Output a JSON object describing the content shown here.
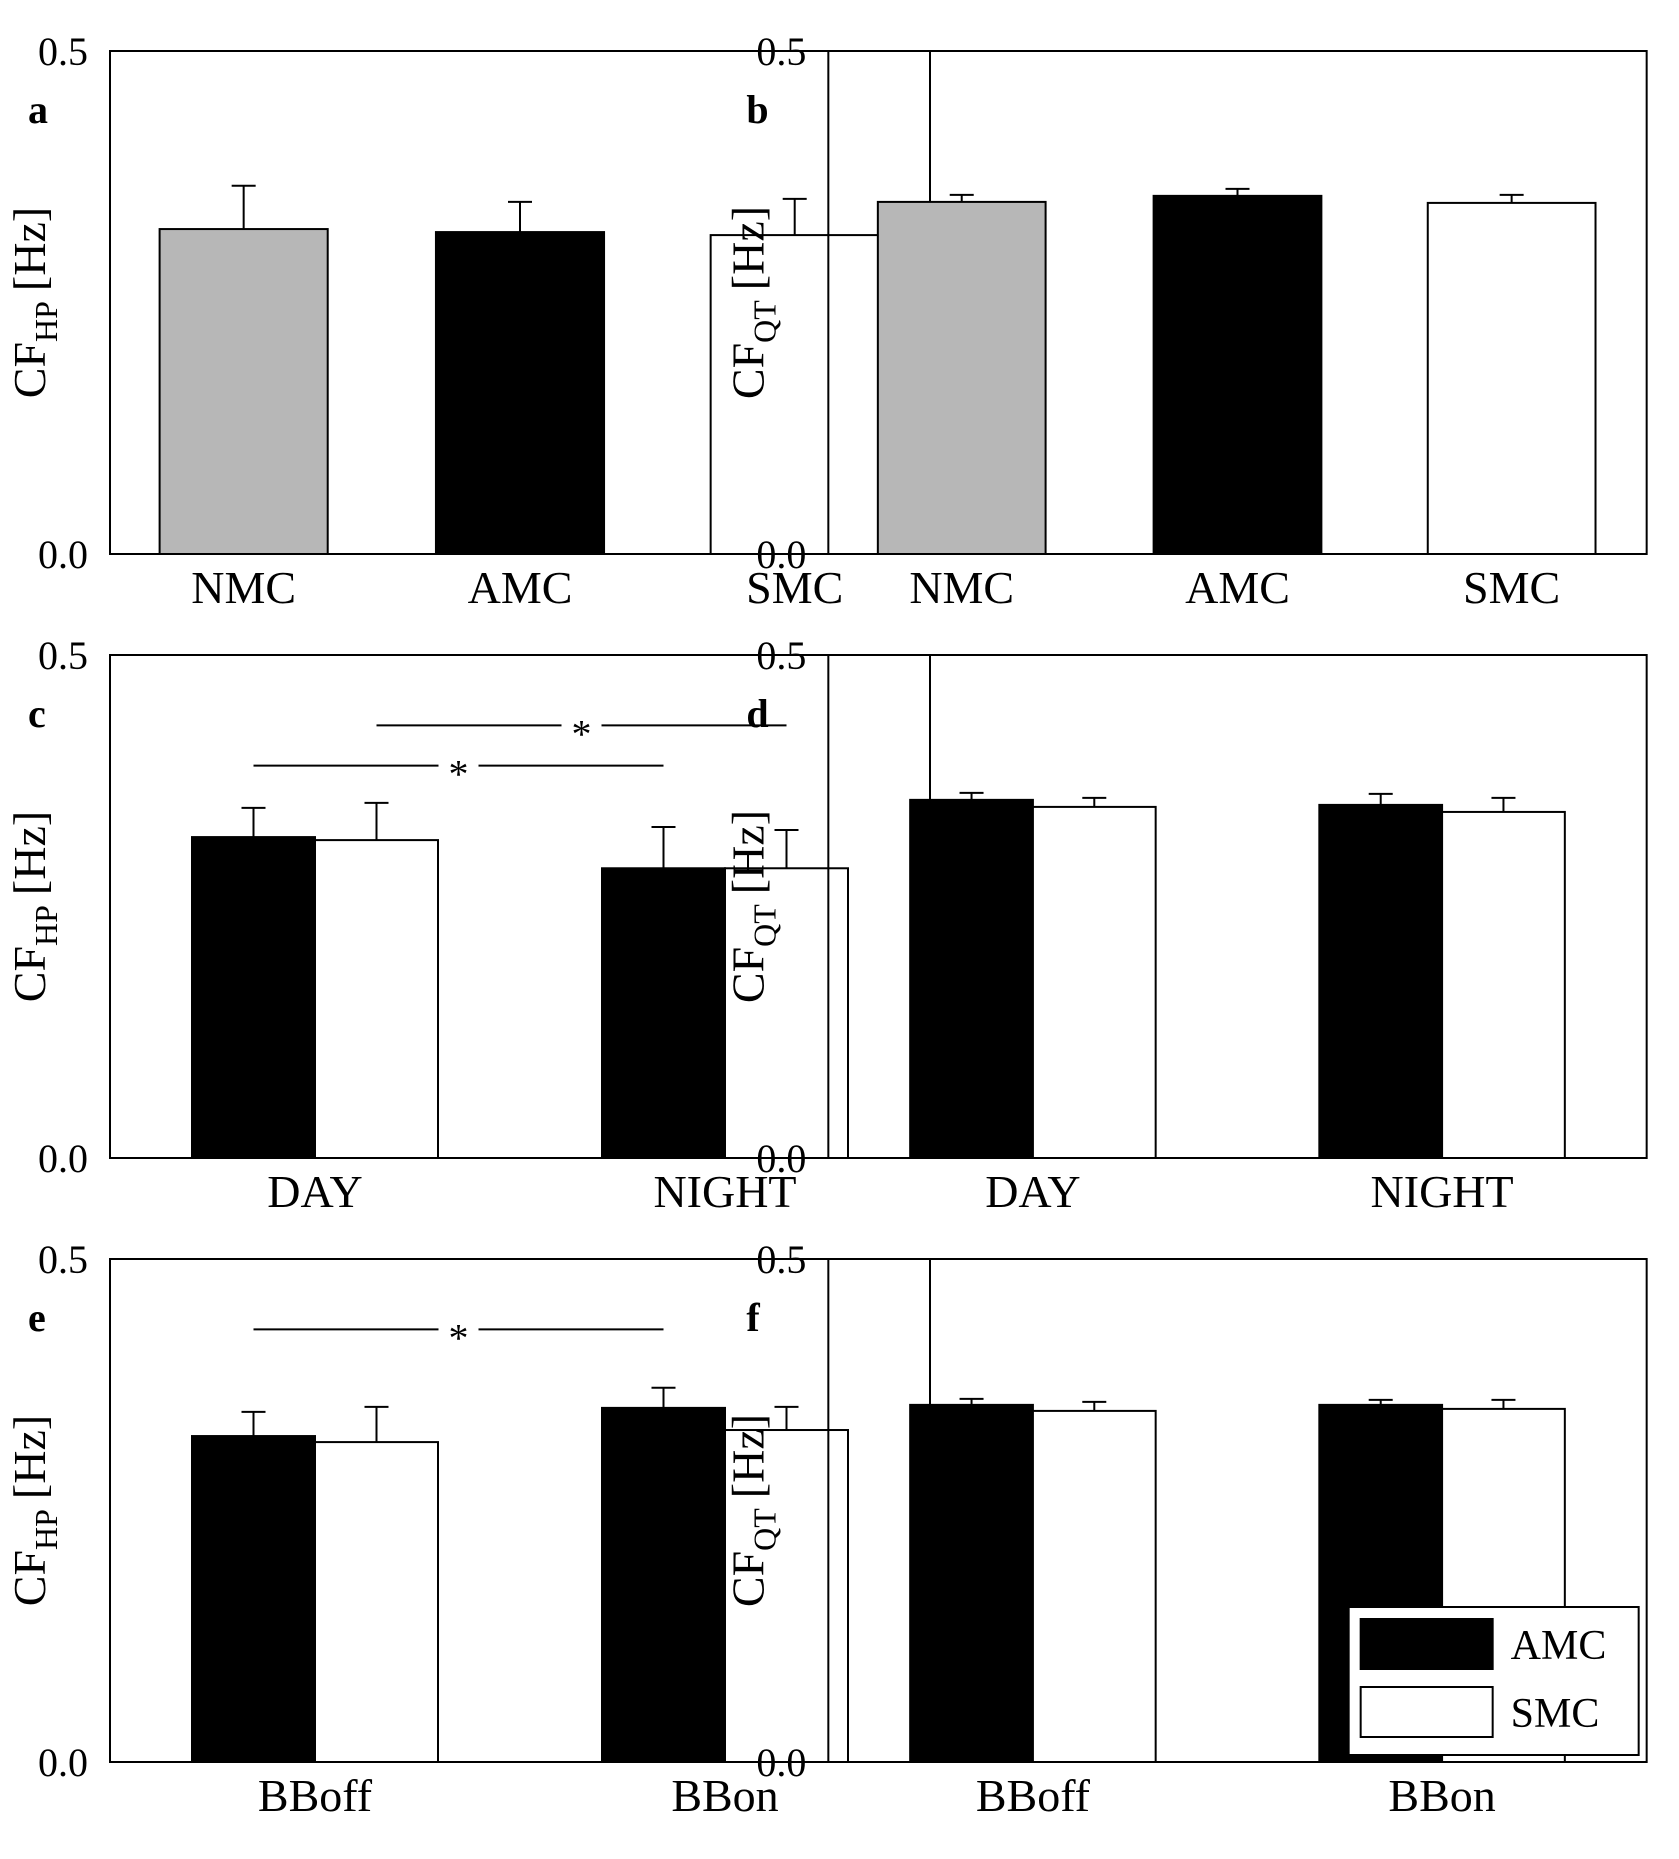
{
  "chart_data": [
    {
      "type": "bar",
      "panel": "a",
      "ylabel": {
        "main": "CF",
        "sub": "HP",
        "unit": "[Hz]"
      },
      "ylim": [
        0,
        0.5
      ],
      "yticks": [
        "0.0",
        "0.5"
      ],
      "categories": [
        "NMC",
        "AMC",
        "SMC"
      ],
      "series": [
        {
          "name": "value",
          "values": [
            0.323,
            0.32,
            0.317
          ],
          "errors": [
            0.043,
            0.03,
            0.036
          ],
          "colors": [
            "#b7b7b7",
            "#000000",
            "#ffffff"
          ]
        }
      ],
      "significance": []
    },
    {
      "type": "bar",
      "panel": "b",
      "ylabel": {
        "main": "CF",
        "sub": "QT",
        "unit": "[Hz]"
      },
      "ylim": [
        0,
        0.5
      ],
      "yticks": [
        "0.0",
        "0.5"
      ],
      "categories": [
        "NMC",
        "AMC",
        "SMC"
      ],
      "series": [
        {
          "name": "value",
          "values": [
            0.35,
            0.356,
            0.349
          ],
          "errors": [
            0.007,
            0.007,
            0.008
          ],
          "colors": [
            "#b7b7b7",
            "#000000",
            "#ffffff"
          ]
        }
      ],
      "significance": []
    },
    {
      "type": "bar",
      "panel": "c",
      "ylabel": {
        "main": "CF",
        "sub": "HP",
        "unit": "[Hz]"
      },
      "ylim": [
        0,
        0.5
      ],
      "yticks": [
        "0.0",
        "0.5"
      ],
      "categories": [
        "DAY",
        "NIGHT"
      ],
      "series": [
        {
          "name": "AMC",
          "values": [
            0.319,
            0.288
          ],
          "errors": [
            0.029,
            0.041
          ],
          "color": "#000000"
        },
        {
          "name": "SMC",
          "values": [
            0.316,
            0.288
          ],
          "errors": [
            0.037,
            0.038
          ],
          "color": "#ffffff"
        }
      ],
      "significance": [
        {
          "from": [
            0,
            1
          ],
          "to": [
            1,
            1
          ],
          "y": 0.43,
          "label": "*"
        },
        {
          "from": [
            0,
            0
          ],
          "to": [
            1,
            0
          ],
          "y": 0.39,
          "label": "*"
        }
      ]
    },
    {
      "type": "bar",
      "panel": "d",
      "ylabel": {
        "main": "CF",
        "sub": "QT",
        "unit": "[Hz]"
      },
      "ylim": [
        0,
        0.5
      ],
      "yticks": [
        "0.0",
        "0.5"
      ],
      "categories": [
        "DAY",
        "NIGHT"
      ],
      "series": [
        {
          "name": "AMC",
          "values": [
            0.356,
            0.351
          ],
          "errors": [
            0.007,
            0.011
          ],
          "color": "#000000"
        },
        {
          "name": "SMC",
          "values": [
            0.349,
            0.344
          ],
          "errors": [
            0.009,
            0.014
          ],
          "color": "#ffffff"
        }
      ],
      "significance": []
    },
    {
      "type": "bar",
      "panel": "e",
      "ylabel": {
        "main": "CF",
        "sub": "HP",
        "unit": "[Hz]"
      },
      "ylim": [
        0,
        0.5
      ],
      "yticks": [
        "0.0",
        "0.5"
      ],
      "categories": [
        "BBoff",
        "BBon"
      ],
      "series": [
        {
          "name": "AMC",
          "values": [
            0.324,
            0.352
          ],
          "errors": [
            0.024,
            0.02
          ],
          "color": "#000000"
        },
        {
          "name": "SMC",
          "values": [
            0.318,
            0.33
          ],
          "errors": [
            0.035,
            0.023
          ],
          "color": "#ffffff"
        }
      ],
      "significance": [
        {
          "from": [
            0,
            0
          ],
          "to": [
            1,
            0
          ],
          "y": 0.43,
          "label": "*"
        }
      ]
    },
    {
      "type": "bar",
      "panel": "f",
      "ylabel": {
        "main": "CF",
        "sub": "QT",
        "unit": "[Hz]"
      },
      "ylim": [
        0,
        0.5
      ],
      "yticks": [
        "0.0",
        "0.5"
      ],
      "categories": [
        "BBoff",
        "BBon"
      ],
      "series": [
        {
          "name": "AMC",
          "values": [
            0.355,
            0.355
          ],
          "errors": [
            0.006,
            0.005
          ],
          "color": "#000000"
        },
        {
          "name": "SMC",
          "values": [
            0.349,
            0.351
          ],
          "errors": [
            0.009,
            0.009
          ],
          "color": "#ffffff"
        }
      ],
      "significance": [],
      "legend": {
        "position": "bottom-right",
        "entries": [
          {
            "label": "AMC",
            "color": "#000000"
          },
          {
            "label": "SMC",
            "color": "#ffffff"
          }
        ]
      }
    }
  ]
}
